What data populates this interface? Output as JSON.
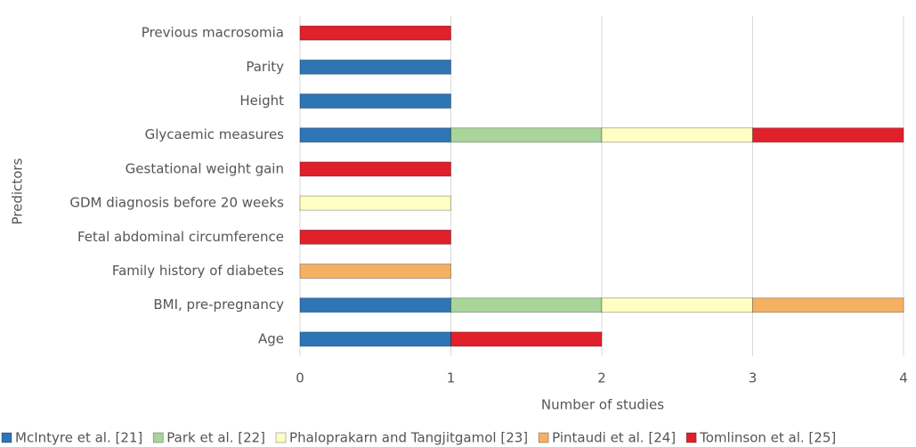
{
  "chart_data": {
    "type": "stacked-barh",
    "categories": [
      "Previous macrosomia",
      "Parity",
      "Height",
      "Glycaemic measures",
      "Gestational weight gain",
      "GDM diagnosis before 20 weeks",
      "Fetal abdominal circumference",
      "Family history of diabetes",
      "BMI, pre-pregnancy",
      "Age"
    ],
    "series": [
      {
        "name": "McIntyre et al. [21]",
        "color": "#2e75b6",
        "values": [
          0,
          1,
          1,
          1,
          0,
          0,
          0,
          0,
          1,
          1
        ]
      },
      {
        "name": "Park et al. [22]",
        "color": "#a9d59a",
        "values": [
          0,
          0,
          0,
          1,
          0,
          0,
          0,
          0,
          1,
          0
        ]
      },
      {
        "name": "Phaloprakarn and Tangjitgamol [23]",
        "color": "#ffffc4",
        "values": [
          0,
          0,
          0,
          1,
          0,
          1,
          0,
          0,
          1,
          0
        ]
      },
      {
        "name": "Pintaudi et al. [24]",
        "color": "#f5b063",
        "values": [
          0,
          0,
          0,
          0,
          0,
          0,
          0,
          1,
          1,
          0
        ]
      },
      {
        "name": "Tomlinson et al. [25]",
        "color": "#e0202a",
        "values": [
          1,
          0,
          0,
          1,
          1,
          0,
          1,
          0,
          0,
          1
        ]
      }
    ],
    "xlabel": "Number of studies",
    "ylabel": "Predictors",
    "xlim": [
      0,
      4
    ],
    "xticks": [
      0,
      1,
      2,
      3,
      4
    ],
    "grid": true,
    "legend": "bottom"
  }
}
